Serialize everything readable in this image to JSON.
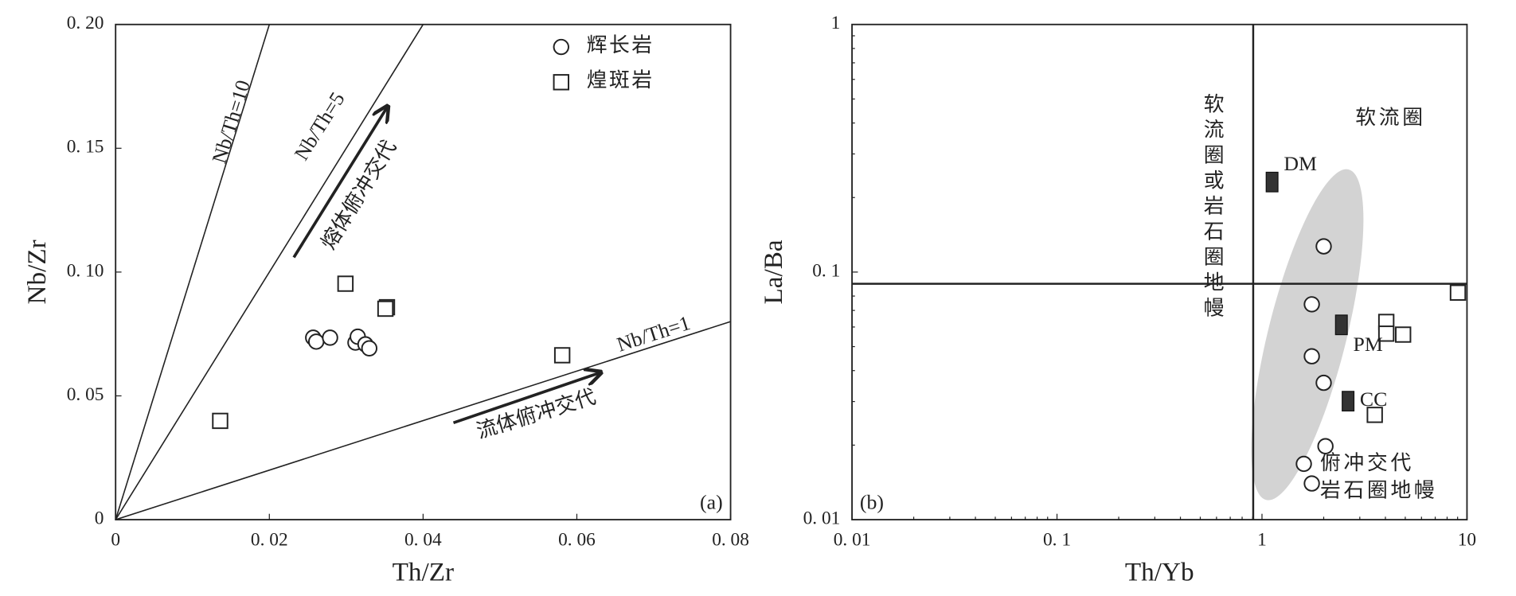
{
  "chart_data": [
    {
      "type": "scatter",
      "x_label": "Th/Zr",
      "y_label": "Nb/Zr",
      "panel_label": "(a)",
      "xlim": [
        0,
        0.08
      ],
      "ylim": [
        0,
        0.2
      ],
      "xticks": [
        0,
        {
          "value": 0.02,
          "label": "0. 02"
        },
        {
          "value": 0.04,
          "label": "0. 04"
        },
        {
          "value": 0.06,
          "label": "0. 06"
        },
        {
          "value": 0.08,
          "label": "0. 08"
        }
      ],
      "yticks": [
        0,
        {
          "value": 0.05,
          "label": "0. 05"
        },
        {
          "value": 0.1,
          "label": "0. 10"
        },
        {
          "value": 0.15,
          "label": "0. 15"
        },
        {
          "value": 0.2,
          "label": "0. 20"
        }
      ],
      "legend": "upper right",
      "ratio_lines": [
        {
          "label": "Nb/Th=10",
          "ratio": 10
        },
        {
          "label": "Nb/Th=5",
          "ratio": 5
        },
        {
          "label": "Nb/Th=1",
          "ratio": 1
        }
      ],
      "annotations": [
        "熔体俯冲交代",
        "流体俯冲交代"
      ],
      "series": [
        {
          "name": "辉长岩",
          "marker": "circle",
          "color": "#ffffff",
          "x": [
            0.0257,
            0.0261,
            0.0279,
            0.0312,
            0.0315,
            0.0325,
            0.033
          ],
          "values": [
            0.0735,
            0.0719,
            0.0735,
            0.0715,
            0.0739,
            0.0708,
            0.0692
          ]
        },
        {
          "name": "煌斑岩",
          "marker": "square",
          "color": "#ffffff",
          "x": [
            0.0136,
            0.0299,
            0.0353,
            0.0351,
            0.0581
          ],
          "values": [
            0.0399,
            0.0953,
            0.0858,
            0.0852,
            0.0664
          ]
        }
      ]
    },
    {
      "type": "scatter",
      "x_label": "Th/Yb",
      "y_label": "La/Ba",
      "panel_label": "(b)",
      "xscale": "log",
      "yscale": "log",
      "xlim": [
        0.01,
        10
      ],
      "ylim": [
        0.01,
        1
      ],
      "xticks": [
        {
          "value": 0.01,
          "label": "0. 01"
        },
        {
          "value": 0.1,
          "label": "0. 1"
        },
        1,
        10
      ],
      "yticks": [
        {
          "value": 0.01,
          "label": "0. 01"
        },
        {
          "value": 0.1,
          "label": "0. 1"
        },
        1
      ],
      "divider": {
        "x": 0.906,
        "y": 0.0897
      },
      "field_labels": {
        "vertical": "软流圈或岩石圈地幔",
        "upper_right": "软流圈",
        "lower": [
          "俯冲交代",
          "岩石圈地幔"
        ]
      },
      "series": [
        {
          "marker": "circle",
          "color": "#ffffff",
          "x": [
            2.0,
            1.75,
            1.75,
            2.0,
            2.04,
            1.6,
            1.75
          ],
          "values": [
            0.127,
            0.0741,
            0.0457,
            0.0357,
            0.0198,
            0.0168,
            0.014
          ]
        },
        {
          "marker": "square",
          "color": "#ffffff",
          "x": [
            9.03,
            4.04,
            4.04,
            4.88,
            3.55
          ],
          "values": [
            0.0826,
            0.0629,
            0.0564,
            0.0559,
            0.0265
          ]
        }
      ],
      "reference_points": {
        "color": "#333333",
        "points": [
          {
            "label": "DM",
            "x": 1.12,
            "y": 0.231
          },
          {
            "label": "PM",
            "x": 2.44,
            "y": 0.0612
          },
          {
            "label": "CC",
            "x": 2.63,
            "y": 0.0301
          }
        ]
      }
    }
  ]
}
